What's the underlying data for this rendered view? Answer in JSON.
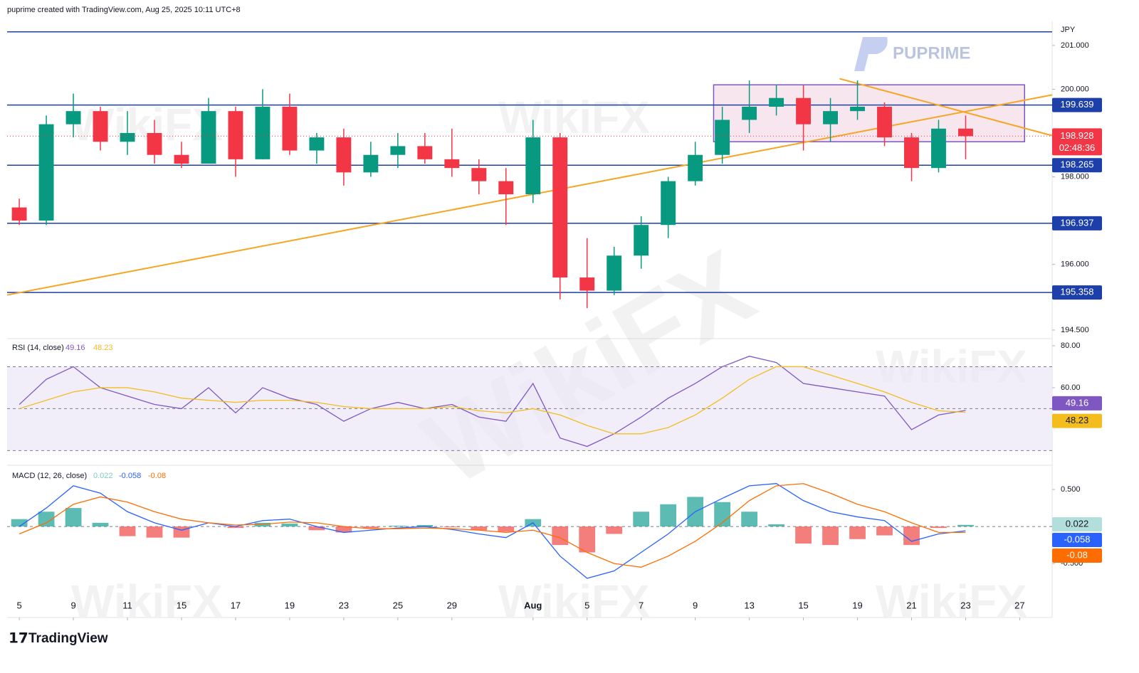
{
  "header": "puprime created with TradingView.com, Aug 25, 2025 10:11 UTC+8",
  "footer_logo": "TradingView",
  "watermarks": {
    "brand": "PUPRIME",
    "site": "WikiFX"
  },
  "chart_data": [
    {
      "type": "candlestick",
      "currency": "JPY",
      "x": [
        0,
        1,
        2,
        3,
        4,
        5,
        6,
        7,
        8,
        9,
        10,
        11,
        12,
        13,
        14,
        15,
        16,
        17,
        18,
        19,
        20,
        21,
        22,
        23,
        24,
        25,
        26,
        27,
        28,
        29,
        30,
        31,
        32,
        33,
        34,
        35
      ],
      "open": [
        197.3,
        197.0,
        199.2,
        199.5,
        198.8,
        199.0,
        198.5,
        198.3,
        199.5,
        198.4,
        199.6,
        198.6,
        198.9,
        198.1,
        198.5,
        198.7,
        198.4,
        198.2,
        197.9,
        197.6,
        198.9,
        195.7,
        195.4,
        196.2,
        196.9,
        197.9,
        198.5,
        199.3,
        199.6,
        199.8,
        199.2,
        199.5,
        199.6,
        198.9,
        198.2,
        199.1
      ],
      "high": [
        197.5,
        199.4,
        199.9,
        199.6,
        199.5,
        199.3,
        198.8,
        199.8,
        199.6,
        200.0,
        199.9,
        199.0,
        199.1,
        198.8,
        199.0,
        199.0,
        199.1,
        198.4,
        198.2,
        199.3,
        199.0,
        196.6,
        196.4,
        197.1,
        198.0,
        198.8,
        199.6,
        200.2,
        200.1,
        200.1,
        199.8,
        200.2,
        199.7,
        199.0,
        199.3,
        199.4
      ],
      "low": [
        196.9,
        196.9,
        198.9,
        198.6,
        198.5,
        198.3,
        198.2,
        198.3,
        198.0,
        198.4,
        198.5,
        198.3,
        197.8,
        198.0,
        198.2,
        198.3,
        198.0,
        197.6,
        196.9,
        197.4,
        195.2,
        195.0,
        195.3,
        195.9,
        196.6,
        197.8,
        198.3,
        199.0,
        199.4,
        198.6,
        198.8,
        199.3,
        198.7,
        197.9,
        198.1,
        198.4
      ],
      "close": [
        197.0,
        199.2,
        199.5,
        198.8,
        199.0,
        198.5,
        198.3,
        199.5,
        198.4,
        199.6,
        198.6,
        198.9,
        198.1,
        198.5,
        198.7,
        198.4,
        198.2,
        197.9,
        197.6,
        198.9,
        195.7,
        195.4,
        196.2,
        196.9,
        197.9,
        198.5,
        199.3,
        199.6,
        199.8,
        199.2,
        199.5,
        199.6,
        198.9,
        198.2,
        199.1,
        198.928
      ],
      "up_color": "#089981",
      "down_color": "#f23645",
      "countdown": "02:48:36",
      "xlim": [
        -0.45,
        38.2
      ],
      "xticks": [
        {
          "value": 0,
          "label": "5"
        },
        {
          "value": 2,
          "label": "9"
        },
        {
          "value": 4,
          "label": "11"
        },
        {
          "value": 6,
          "label": "15"
        },
        {
          "value": 8,
          "label": "17"
        },
        {
          "value": 10,
          "label": "19"
        },
        {
          "value": 12,
          "label": "23"
        },
        {
          "value": 14,
          "label": "25"
        },
        {
          "value": 16,
          "label": "29"
        },
        {
          "value": 19,
          "label": "Aug"
        },
        {
          "value": 21,
          "label": "5"
        },
        {
          "value": 23,
          "label": "7"
        },
        {
          "value": 25,
          "label": "9"
        },
        {
          "value": 27,
          "label": "13"
        },
        {
          "value": 29,
          "label": "15"
        },
        {
          "value": 31,
          "label": "19"
        },
        {
          "value": 33,
          "label": "21"
        },
        {
          "value": 35,
          "label": "23"
        },
        {
          "value": 37,
          "label": "27"
        }
      ],
      "ylim": [
        194.32,
        201.55
      ],
      "yticks": [
        {
          "value": 201,
          "label": "201.000"
        },
        {
          "value": 200,
          "label": "200.000"
        },
        {
          "value": 198,
          "label": "198.000"
        },
        {
          "value": 196,
          "label": "196.000"
        },
        {
          "value": 194.5,
          "label": "194.500"
        }
      ],
      "top_line": 201.31,
      "levels": [
        199.639,
        198.265,
        196.937,
        195.358
      ],
      "level_color": "#1c3faa",
      "trendlines": [
        {
          "points": [
            [
              -0.45,
              195.3
            ],
            [
              38.2,
              199.87
            ]
          ],
          "color": "#f5a623"
        },
        {
          "points": [
            [
              30.34,
              200.24
            ],
            [
              38.2,
              198.94
            ]
          ],
          "color": "#f5a623"
        }
      ],
      "range_box": {
        "x": [
          25.68,
          37.18
        ],
        "y": [
          198.8,
          200.1
        ],
        "color": "#7e57c2"
      }
    },
    {
      "type": "line",
      "title": "RSI (14, close)",
      "series": [
        {
          "color": "#7e57c2",
          "values": [
            52,
            64,
            70,
            60,
            56,
            52,
            50,
            60,
            48,
            60,
            55,
            52,
            44,
            50,
            53,
            50,
            52,
            46,
            44,
            62,
            36,
            32,
            38,
            46,
            55,
            62,
            70,
            75,
            72,
            62,
            60,
            58,
            56,
            40,
            47,
            49.16
          ]
        },
        {
          "color": "#f2bd1d",
          "values": [
            50,
            54,
            58,
            60,
            60,
            58,
            55,
            54,
            53,
            54,
            54,
            53,
            51,
            50,
            50,
            50,
            51,
            49,
            48,
            50,
            47,
            42,
            38,
            38,
            41,
            47,
            55,
            64,
            70,
            70,
            66,
            62,
            58,
            53,
            49,
            48.23
          ]
        }
      ],
      "ylim": [
        23.7,
        82.7
      ],
      "yticks": [
        {
          "value": 80,
          "label": "80.00"
        },
        {
          "value": 60,
          "label": "60.00"
        }
      ],
      "levels": [
        70,
        50,
        30
      ]
    },
    {
      "type": "macd",
      "title": "MACD (12, 26, close)",
      "series": [
        {
          "kind": "histogram",
          "color": "#26a69a",
          "negative_color": "#ef5350",
          "values": [
            0.1,
            0.2,
            0.25,
            0.05,
            -0.13,
            -0.15,
            -0.15,
            0,
            -0.02,
            0.05,
            0.04,
            -0.05,
            -0.08,
            -0.02,
            0.01,
            0.02,
            -0.01,
            -0.05,
            -0.07,
            0.1,
            -0.25,
            -0.35,
            -0.1,
            0.2,
            0.3,
            0.4,
            0.33,
            0.2,
            0.03,
            -0.23,
            -0.25,
            -0.17,
            -0.12,
            -0.25,
            -0.02,
            0.022
          ]
        },
        {
          "kind": "line",
          "color": "#2962ff",
          "values": [
            0,
            0.25,
            0.55,
            0.45,
            0.2,
            0.05,
            -0.05,
            0.05,
            0,
            0.08,
            0.1,
            0,
            -0.08,
            -0.05,
            -0.02,
            0,
            -0.04,
            -0.1,
            -0.15,
            0.05,
            -0.4,
            -0.7,
            -0.6,
            -0.35,
            -0.1,
            0.2,
            0.38,
            0.55,
            0.58,
            0.35,
            0.2,
            0.13,
            0.08,
            -0.2,
            -0.1,
            -0.058
          ]
        },
        {
          "kind": "line",
          "color": "#ff6d00",
          "values": [
            -0.1,
            0.05,
            0.3,
            0.4,
            0.33,
            0.2,
            0.1,
            0.05,
            0.02,
            0.03,
            0.06,
            0.05,
            0,
            -0.03,
            -0.03,
            -0.02,
            -0.03,
            -0.05,
            -0.08,
            -0.05,
            -0.15,
            -0.35,
            -0.5,
            -0.55,
            -0.4,
            -0.2,
            0.05,
            0.35,
            0.55,
            0.58,
            0.45,
            0.3,
            0.2,
            0.05,
            -0.08,
            -0.08
          ]
        }
      ],
      "ylim": [
        -1.21,
        0.808
      ],
      "yticks": [
        {
          "value": 0.5,
          "label": "0.500"
        },
        {
          "value": -0.5,
          "label": "-0.500"
        }
      ]
    }
  ]
}
